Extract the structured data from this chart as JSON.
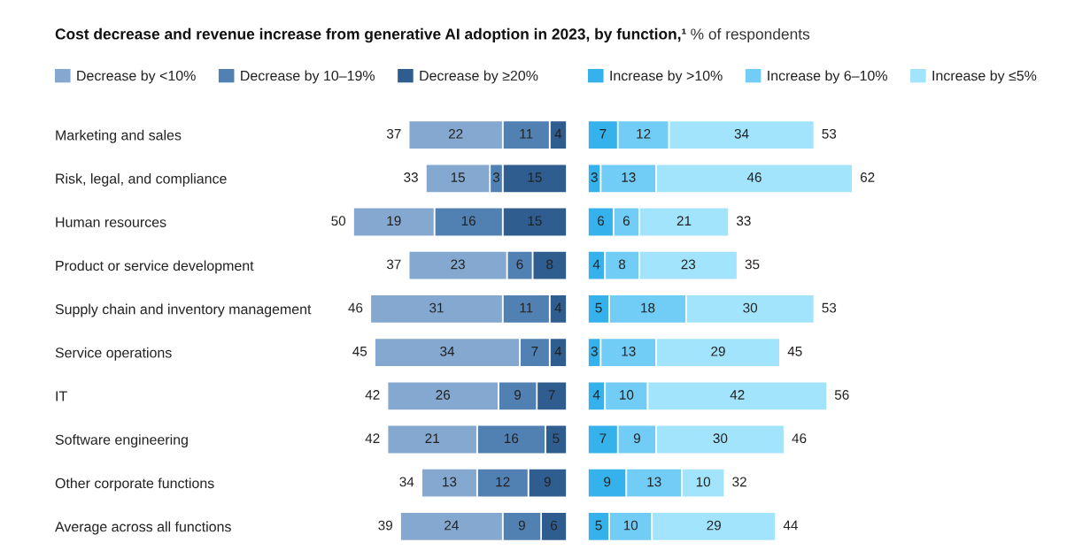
{
  "chart_data": [
    {
      "type": "bar",
      "orientation": "horizontal",
      "stacked": true,
      "title": "Cost decrease and revenue increase from generative AI adoption in 2023, by function,¹",
      "categories": [
        "Marketing and sales",
        "Risk, legal, and compliance",
        "Human resources",
        "Product or service development",
        "Supply chain and inventory management",
        "Service operations",
        "IT",
        "Software engineering",
        "Other corporate functions",
        "Average across all functions"
      ],
      "series": [
        {
          "name": "Decrease by ≥20%",
          "color": "#2f5d8f",
          "values": [
            4,
            15,
            15,
            8,
            4,
            4,
            7,
            5,
            9,
            6
          ]
        },
        {
          "name": "Decrease by 10–19%",
          "color": "#5180b2",
          "values": [
            11,
            3,
            16,
            6,
            11,
            7,
            9,
            16,
            12,
            9
          ]
        },
        {
          "name": "Decrease by <10%",
          "color": "#84a8cf",
          "values": [
            22,
            15,
            19,
            23,
            31,
            34,
            26,
            21,
            13,
            24
          ]
        }
      ],
      "totals": [
        "37",
        "33",
        "50",
        "37",
        "46",
        "45",
        "42",
        "42",
        "34",
        "39"
      ],
      "data_labels": true,
      "legend": "top",
      "tick_labels": "y"
    },
    {
      "type": "bar",
      "orientation": "horizontal",
      "stacked": true,
      "subtitle": "% of respondents",
      "categories": [
        null,
        null,
        null,
        null,
        null,
        null,
        null,
        null,
        null,
        null
      ],
      "series": [
        {
          "name": "Increase by >10%",
          "color": "#35b1ec",
          "values": [
            7,
            3,
            6,
            4,
            5,
            3,
            4,
            7,
            9,
            5
          ]
        },
        {
          "name": "Increase by 6–10%",
          "color": "#72cdf6",
          "values": [
            12,
            13,
            6,
            8,
            18,
            13,
            10,
            9,
            13,
            10
          ]
        },
        {
          "name": "Increase by ≤5%",
          "color": "#a2e4fc",
          "values": [
            34,
            46,
            21,
            23,
            30,
            29,
            42,
            30,
            10,
            29
          ]
        }
      ],
      "totals": [
        "53",
        "62",
        "33",
        "35",
        "53",
        "45",
        "56",
        "46",
        "32",
        "44"
      ],
      "data_labels": true,
      "legend": "top",
      "tick_labels": false
    }
  ]
}
